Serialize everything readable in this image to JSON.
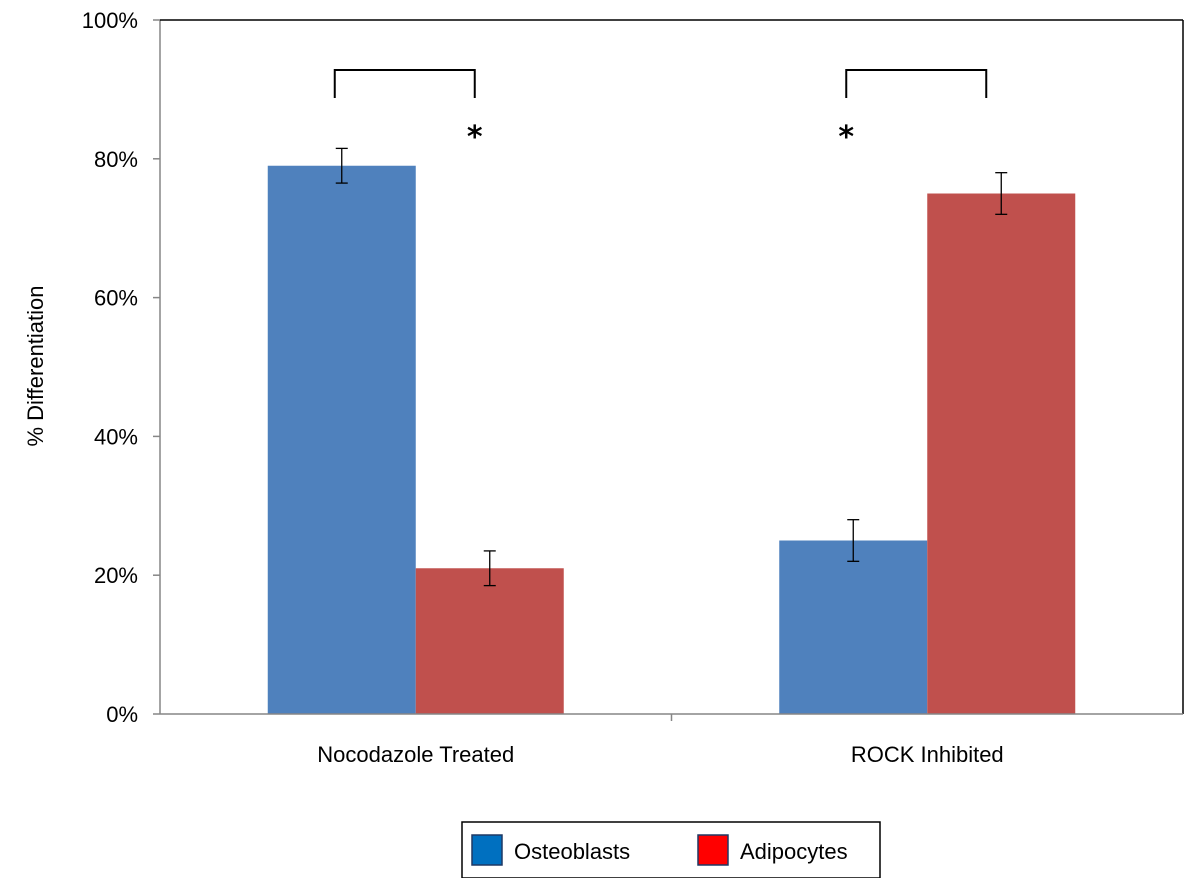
{
  "chart_data": {
    "type": "bar",
    "categories": [
      "Nocodazole Treated",
      "ROCK Inhibited"
    ],
    "series": [
      {
        "name": "Osteoblasts",
        "values": [
          79,
          25
        ],
        "errors": [
          2.5,
          3
        ],
        "color": "#4F81BD"
      },
      {
        "name": "Adipocytes",
        "values": [
          21,
          75
        ],
        "errors": [
          2.5,
          3
        ],
        "color": "#C0504D"
      }
    ],
    "ylabel": "% Differentiation",
    "ylim": [
      0,
      100
    ],
    "yticks": [
      "0%",
      "20%",
      "40%",
      "60%",
      "80%",
      "100%"
    ],
    "legend": {
      "placement": "bottom",
      "entries": [
        {
          "label": "Osteoblasts",
          "swatch_color": "#0070C0"
        },
        {
          "label": "Adipocytes",
          "swatch_color": "#FF0000"
        }
      ]
    },
    "annotations": [
      {
        "type": "significance",
        "category_index": 0,
        "text": "*"
      },
      {
        "type": "significance",
        "category_index": 1,
        "text": "*"
      }
    ]
  }
}
